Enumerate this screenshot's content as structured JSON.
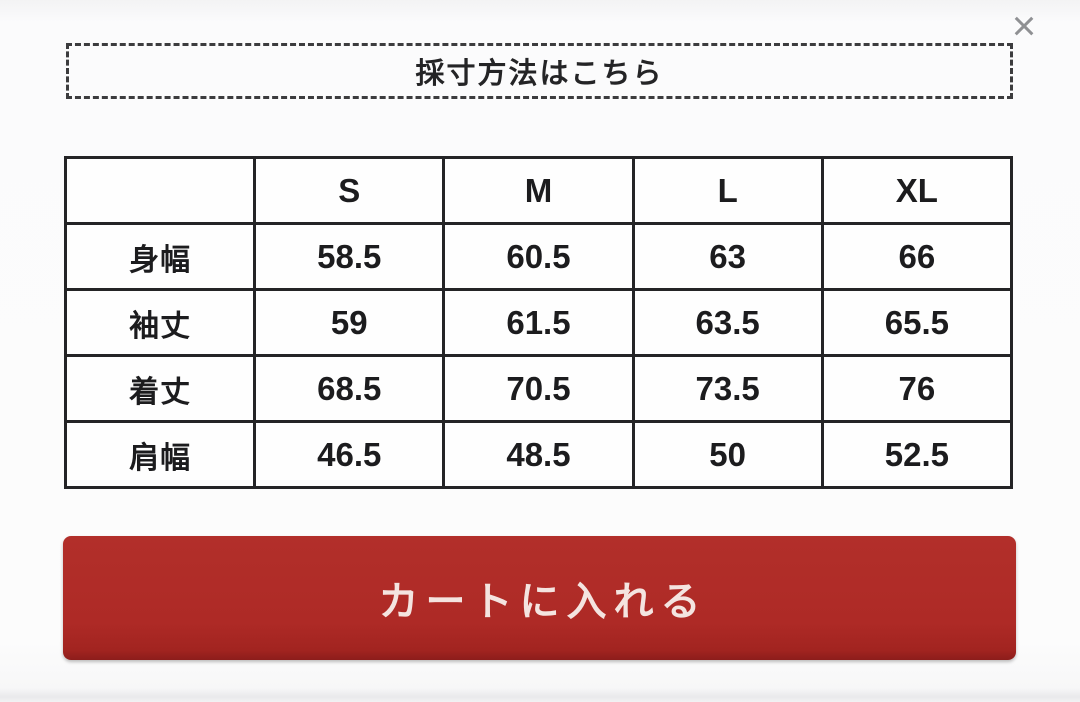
{
  "page": {
    "background": "#fcfcfc"
  },
  "close": {
    "icon": "close-icon",
    "glyph": "×",
    "color": "#8f9093"
  },
  "measure_guide": {
    "label": "採寸方法はこちら"
  },
  "size_table": {
    "columns": [
      "",
      "S",
      "M",
      "L",
      "XL"
    ],
    "rows": [
      {
        "label": "身幅",
        "values": [
          "58.5",
          "60.5",
          "63",
          "66"
        ]
      },
      {
        "label": "袖丈",
        "values": [
          "59",
          "61.5",
          "63.5",
          "65.5"
        ]
      },
      {
        "label": "着丈",
        "values": [
          "68.5",
          "70.5",
          "73.5",
          "76"
        ]
      },
      {
        "label": "肩幅",
        "values": [
          "46.5",
          "48.5",
          "50",
          "52.5"
        ]
      }
    ]
  },
  "cart_button": {
    "label": "カートに入れる",
    "color": "#ae2a26",
    "text_color": "#f4e4e0"
  }
}
